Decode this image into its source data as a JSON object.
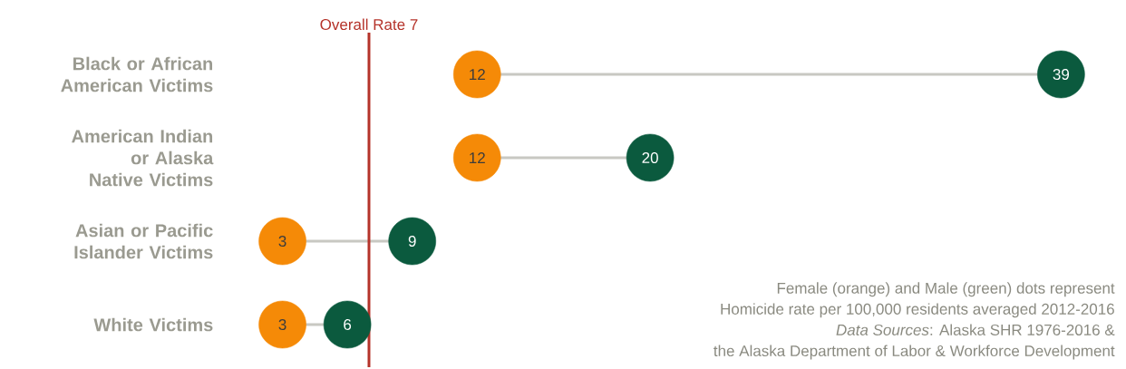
{
  "chart_data": {
    "type": "scatter",
    "orientation": "horizontal",
    "categories": [
      "Black or African American Victims",
      "American Indian or Alaska Native Victims",
      "Asian or Pacific Islander Victims",
      "White Victims"
    ],
    "series": [
      {
        "color": "#f58a07",
        "values": [
          12,
          12,
          3,
          3
        ]
      },
      {
        "color": "#0b5a3e",
        "values": [
          39,
          20,
          9,
          6
        ]
      }
    ],
    "marker": "circle",
    "data_labels": true,
    "tick_labels": "y",
    "ref_lines": [
      {
        "axis": "x",
        "value": 7,
        "label": "Overall Rate 7",
        "color": "#b5332a"
      }
    ],
    "annotations": [
      "Female (orange) and Male (green) dots represent",
      "Homicide rate per 100,000 residents averaged 2012-2016",
      "*Data Sources*: Alaska SHR 1976-2016 &",
      "the Alaska Department of Labor & Workforce Development"
    ]
  }
}
